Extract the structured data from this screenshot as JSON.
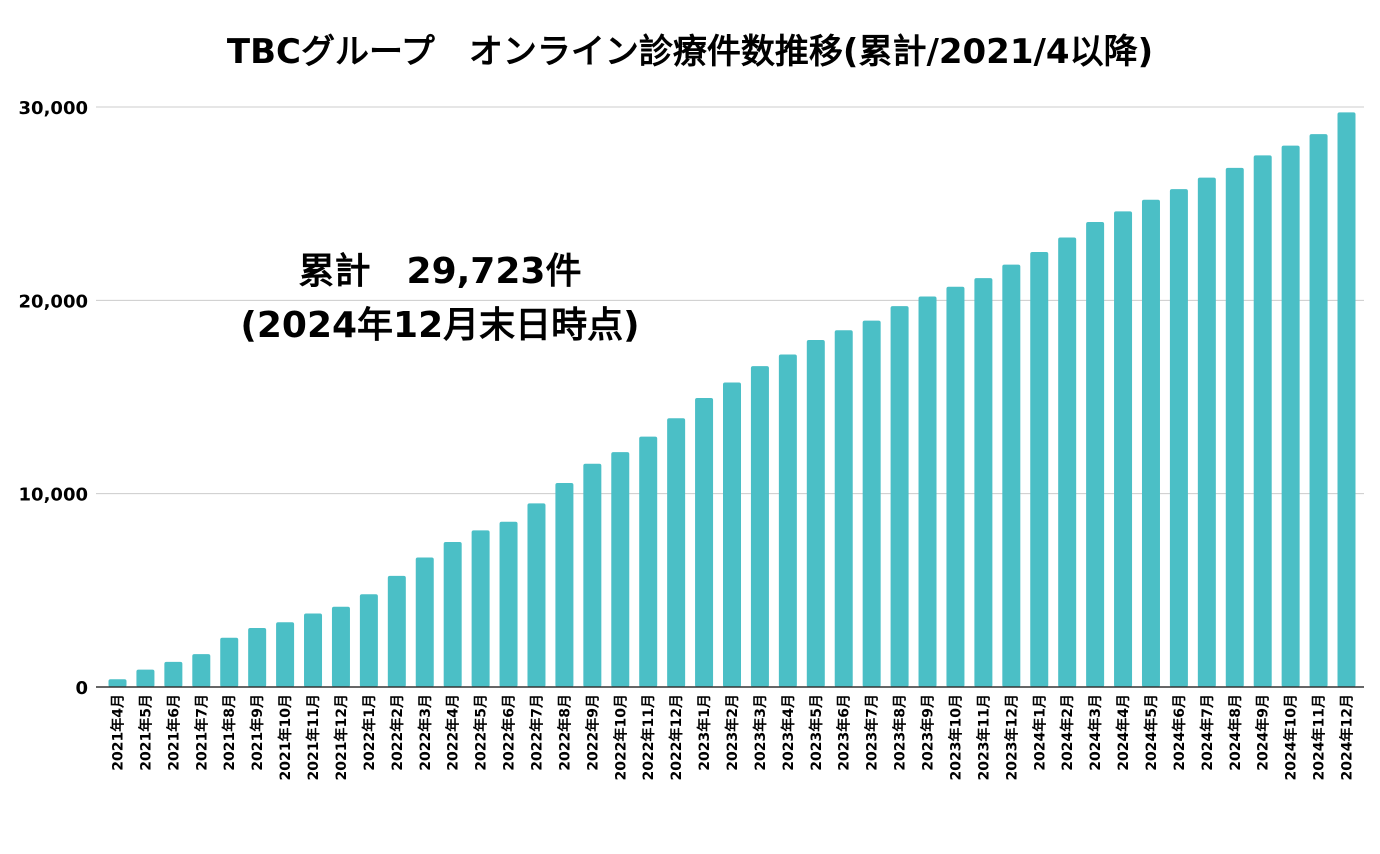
{
  "chart_data": {
    "type": "bar",
    "title": "TBCグループ　オンライン診療件数推移(累計/2021/4以降)",
    "xlabel": "",
    "ylabel": "",
    "ylim": [
      0,
      30000
    ],
    "yticks": [
      0,
      10000,
      20000,
      30000
    ],
    "ytick_labels": [
      "0",
      "10,000",
      "20,000",
      "30,000"
    ],
    "grid": true,
    "legend": "none",
    "bar_color": "#4BBFC6",
    "grid_color": "#CCCCCC",
    "annotation": {
      "line1": "累計　29,723件",
      "line2": "(2024年12月末日時点)"
    },
    "categories": [
      "2021年4月",
      "2021年5月",
      "2021年6月",
      "2021年7月",
      "2021年8月",
      "2021年9月",
      "2021年10月",
      "2021年11月",
      "2021年12月",
      "2022年1月",
      "2022年2月",
      "2022年3月",
      "2022年4月",
      "2022年5月",
      "2022年6月",
      "2022年7月",
      "2022年8月",
      "2022年9月",
      "2022年10月",
      "2022年11月",
      "2022年12月",
      "2023年1月",
      "2023年2月",
      "2023年3月",
      "2023年4月",
      "2023年5月",
      "2023年6月",
      "2023年7月",
      "2023年8月",
      "2023年9月",
      "2023年10月",
      "2023年11月",
      "2023年12月",
      "2024年1月",
      "2024年2月",
      "2024年3月",
      "2024年4月",
      "2024年5月",
      "2024年6月",
      "2024年7月",
      "2024年8月",
      "2024年9月",
      "2024年10月",
      "2024年11月",
      "2024年12月"
    ],
    "values": [
      400,
      900,
      1300,
      1700,
      2550,
      3050,
      3350,
      3800,
      4150,
      4800,
      5750,
      6700,
      7500,
      8100,
      8550,
      9500,
      10550,
      11550,
      12150,
      12950,
      13900,
      14950,
      15750,
      16600,
      17200,
      17950,
      18450,
      18950,
      19700,
      20200,
      20700,
      21150,
      21850,
      22500,
      23250,
      24050,
      24600,
      25200,
      25750,
      26350,
      26850,
      27500,
      28000,
      28600,
      29723
    ]
  }
}
